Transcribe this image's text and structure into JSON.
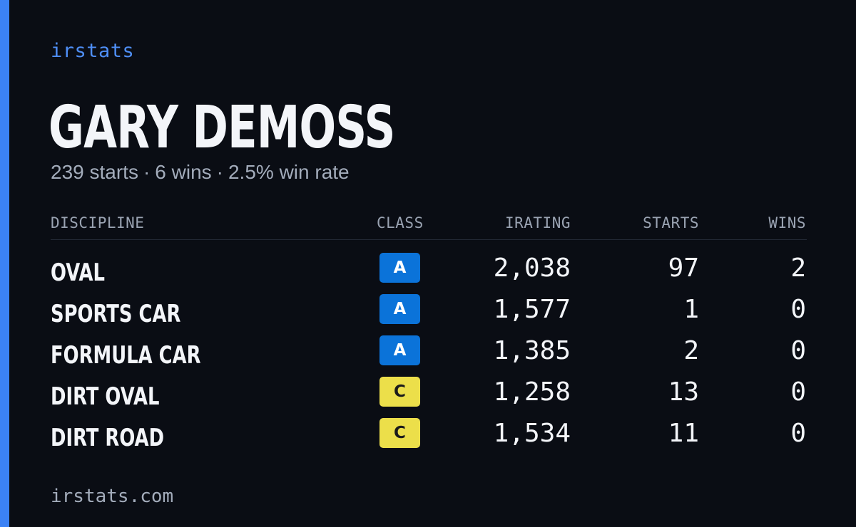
{
  "brand": "irstats",
  "driver": {
    "name": "GARY DEMOSS"
  },
  "summary": {
    "starts": "239 starts",
    "wins": "6 wins",
    "win_rate": "2.5% win rate",
    "separator": "·"
  },
  "table": {
    "headers": {
      "discipline": "DISCIPLINE",
      "class": "CLASS",
      "irating": "IRATING",
      "starts": "STARTS",
      "wins": "WINS"
    },
    "rows": [
      {
        "discipline": "OVAL",
        "class": "A",
        "irating": "2,038",
        "starts": "97",
        "wins": "2"
      },
      {
        "discipline": "SPORTS CAR",
        "class": "A",
        "irating": "1,577",
        "starts": "1",
        "wins": "0"
      },
      {
        "discipline": "FORMULA CAR",
        "class": "A",
        "irating": "1,385",
        "starts": "2",
        "wins": "0"
      },
      {
        "discipline": "DIRT OVAL",
        "class": "C",
        "irating": "1,258",
        "starts": "13",
        "wins": "0"
      },
      {
        "discipline": "DIRT ROAD",
        "class": "C",
        "irating": "1,534",
        "starts": "11",
        "wins": "0"
      }
    ]
  },
  "footer": {
    "url": "irstats.com"
  },
  "colors": {
    "background": "#0a0d14",
    "accent": "#3b82f6",
    "class_a": "#0b73d9",
    "class_c": "#ecdf4a"
  }
}
